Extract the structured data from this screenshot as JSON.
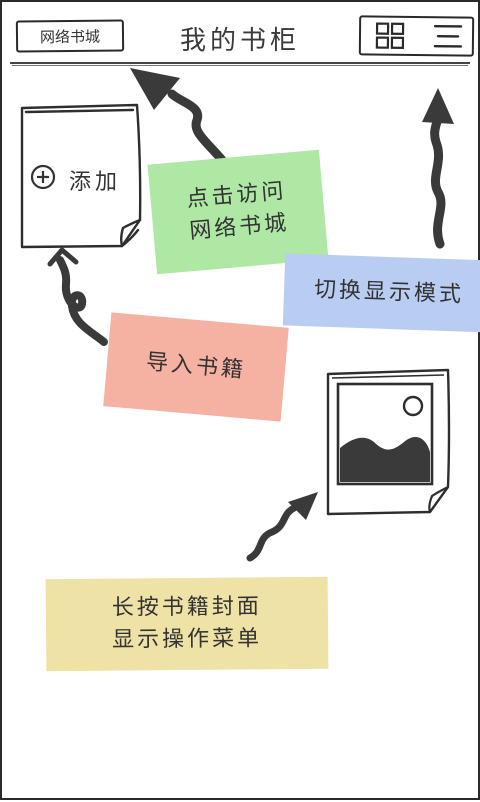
{
  "header": {
    "web_button_label": "网络书城",
    "title": "我的书柜",
    "grid_icon": "grid-view-icon",
    "list_icon": "list-view-icon"
  },
  "shelf": {
    "add_label": "添加",
    "add_icon": "plus-circle-icon"
  },
  "hints": {
    "visit_line1": "点击访问",
    "visit_line2": "网络书城",
    "switch": "切换显示模式",
    "import": "导入书籍",
    "longpress_line1": "长按书籍封面",
    "longpress_line2": "显示操作菜单"
  },
  "colors": {
    "green_note": "#aee8a4",
    "blue_note": "#b9cdf2",
    "red_note": "#f5b1a2",
    "yellow_note": "#efe2a6",
    "ink": "#333333"
  }
}
